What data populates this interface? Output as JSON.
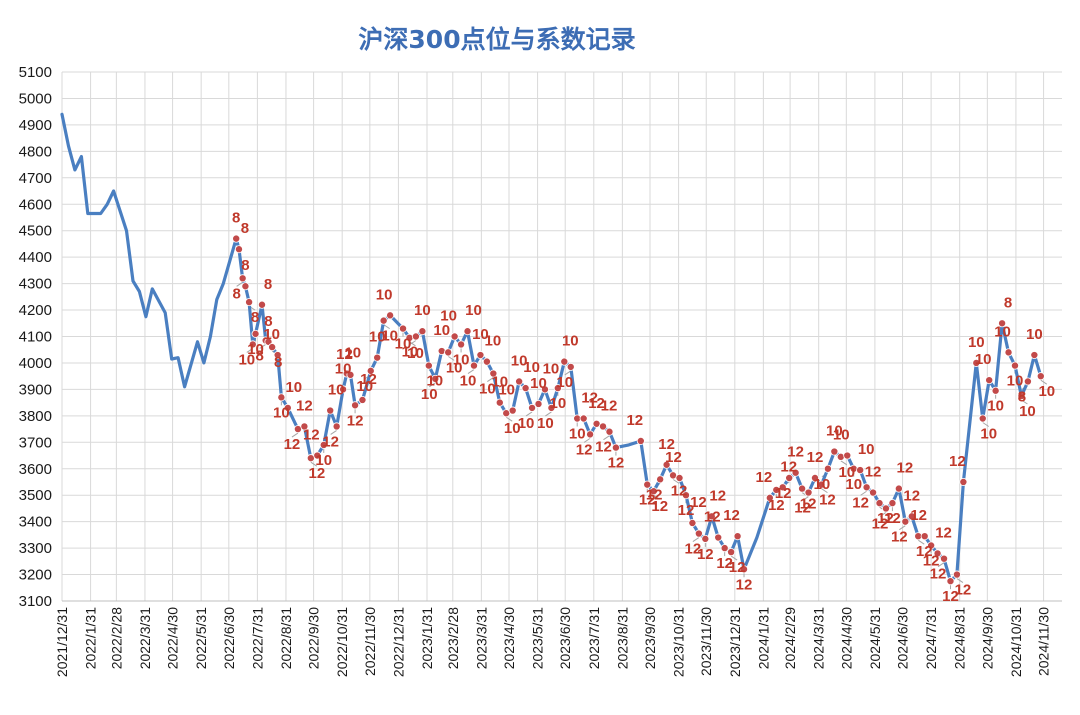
{
  "chart_data": {
    "type": "line",
    "title": "沪深300点位与系数记录",
    "xlabel": "",
    "ylabel": "",
    "ylim": [
      3100,
      5100
    ],
    "ytick_step": 100,
    "grid": true,
    "x_range": [
      "2021-12-31",
      "2024-12-20"
    ],
    "colors": {
      "line": "#4a7fc1",
      "marker": "#c24a4a",
      "label": "#c0392b",
      "title": "#3d6db4"
    },
    "x_tick_labels": [
      "2021/12/31",
      "2022/1/31",
      "2022/2/28",
      "2022/3/31",
      "2022/4/30",
      "2022/5/31",
      "2022/6/30",
      "2022/7/31",
      "2022/8/31",
      "2022/9/30",
      "2022/10/31",
      "2022/11/30",
      "2022/12/31",
      "2023/1/31",
      "2023/2/28",
      "2023/3/31",
      "2023/4/30",
      "2023/5/31",
      "2023/6/30",
      "2023/7/31",
      "2023/8/31",
      "2023/9/30",
      "2023/10/31",
      "2023/11/30",
      "2023/12/31",
      "2024/1/31",
      "2024/2/29",
      "2024/3/31",
      "2024/4/30",
      "2024/5/31",
      "2024/6/30",
      "2024/7/31",
      "2024/8/31",
      "2024/9/30",
      "2024/10/31",
      "2024/11/30"
    ],
    "series": [
      {
        "points": [
          {
            "date": "2021-12-31",
            "y": 4940
          },
          {
            "date": "2022-01-07",
            "y": 4820
          },
          {
            "date": "2022-01-14",
            "y": 4730
          },
          {
            "date": "2022-01-21",
            "y": 4780
          },
          {
            "date": "2022-01-28",
            "y": 4565
          },
          {
            "date": "2022-02-11",
            "y": 4565
          },
          {
            "date": "2022-02-18",
            "y": 4600
          },
          {
            "date": "2022-02-25",
            "y": 4650
          },
          {
            "date": "2022-03-11",
            "y": 4500
          },
          {
            "date": "2022-03-18",
            "y": 4310
          },
          {
            "date": "2022-03-25",
            "y": 4270
          },
          {
            "date": "2022-04-01",
            "y": 4175
          },
          {
            "date": "2022-04-08",
            "y": 4280
          },
          {
            "date": "2022-04-22",
            "y": 4190
          },
          {
            "date": "2022-04-29",
            "y": 4015
          },
          {
            "date": "2022-05-06",
            "y": 4020
          },
          {
            "date": "2022-05-13",
            "y": 3910
          },
          {
            "date": "2022-05-27",
            "y": 4080
          },
          {
            "date": "2022-06-03",
            "y": 4000
          },
          {
            "date": "2022-06-10",
            "y": 4100
          },
          {
            "date": "2022-06-17",
            "y": 4240
          },
          {
            "date": "2022-06-24",
            "y": 4300
          },
          {
            "date": "2022-07-08",
            "y": 4470,
            "label": "8"
          },
          {
            "date": "2022-07-11",
            "y": 4430,
            "label": "8"
          },
          {
            "date": "2022-07-15",
            "y": 4320,
            "label": "8"
          },
          {
            "date": "2022-07-18",
            "y": 4290,
            "label": "8"
          },
          {
            "date": "2022-07-22",
            "y": 4230,
            "label": "8"
          },
          {
            "date": "2022-07-26",
            "y": 4070,
            "label": "10"
          },
          {
            "date": "2022-07-29",
            "y": 4110,
            "label": "10"
          },
          {
            "date": "2022-08-05",
            "y": 4220,
            "label": "8"
          },
          {
            "date": "2022-08-09",
            "y": 4085,
            "label": "8"
          },
          {
            "date": "2022-08-12",
            "y": 4080,
            "label": "8"
          },
          {
            "date": "2022-08-16",
            "y": 4060,
            "label": "8"
          },
          {
            "date": "2022-08-22",
            "y": 4030,
            "label": "10"
          },
          {
            "date": "2022-08-26",
            "y": 3870,
            "label": "10"
          },
          {
            "date": "2022-09-02",
            "y": 3830,
            "label": "10"
          },
          {
            "date": "2022-09-13",
            "y": 3750,
            "label": "12"
          },
          {
            "date": "2022-09-20",
            "y": 3760,
            "label": "12"
          },
          {
            "date": "2022-09-27",
            "y": 3640,
            "label": "12"
          },
          {
            "date": "2022-10-04",
            "y": 3650,
            "label": "12"
          },
          {
            "date": "2022-10-11",
            "y": 3690,
            "label": "10"
          },
          {
            "date": "2022-10-18",
            "y": 3820,
            "label": "10"
          },
          {
            "date": "2022-10-25",
            "y": 3760,
            "label": "12"
          },
          {
            "date": "2022-11-01",
            "y": 3900,
            "label": "10"
          },
          {
            "date": "2022-11-05",
            "y": 3960,
            "label": "10"
          },
          {
            "date": "2022-11-09",
            "y": 3955,
            "label": "12"
          },
          {
            "date": "2022-11-14",
            "y": 3840,
            "label": "12"
          },
          {
            "date": "2022-11-22",
            "y": 3860,
            "label": "12"
          },
          {
            "date": "2022-12-01",
            "y": 3970,
            "label": "10"
          },
          {
            "date": "2022-12-08",
            "y": 4020,
            "label": "10"
          },
          {
            "date": "2022-12-15",
            "y": 4160,
            "label": "10"
          },
          {
            "date": "2022-12-22",
            "y": 4180,
            "label": "10"
          },
          {
            "date": "2023-01-05",
            "y": 4130,
            "label": "10"
          },
          {
            "date": "2023-01-12",
            "y": 4095,
            "label": "10"
          },
          {
            "date": "2023-01-19",
            "y": 4100,
            "label": "10"
          },
          {
            "date": "2023-01-26",
            "y": 4120,
            "label": "10"
          },
          {
            "date": "2023-02-02",
            "y": 3990,
            "label": "10"
          },
          {
            "date": "2023-02-09",
            "y": 3940,
            "label": "10"
          },
          {
            "date": "2023-02-16",
            "y": 4045,
            "label": "10"
          },
          {
            "date": "2023-02-23",
            "y": 4040,
            "label": "10"
          },
          {
            "date": "2023-03-02",
            "y": 4100,
            "label": "10"
          },
          {
            "date": "2023-03-09",
            "y": 4070,
            "label": "10"
          },
          {
            "date": "2023-03-16",
            "y": 4120,
            "label": "10"
          },
          {
            "date": "2023-03-23",
            "y": 3990,
            "label": "10"
          },
          {
            "date": "2023-03-30",
            "y": 4030,
            "label": "10"
          },
          {
            "date": "2023-04-06",
            "y": 4005,
            "label": "10"
          },
          {
            "date": "2023-04-13",
            "y": 3960,
            "label": "10"
          },
          {
            "date": "2023-04-20",
            "y": 3850,
            "label": "10"
          },
          {
            "date": "2023-04-27",
            "y": 3810,
            "label": "10"
          },
          {
            "date": "2023-05-04",
            "y": 3820,
            "label": "10"
          },
          {
            "date": "2023-05-11",
            "y": 3930,
            "label": "10"
          },
          {
            "date": "2023-05-18",
            "y": 3905,
            "label": "10"
          },
          {
            "date": "2023-05-25",
            "y": 3830,
            "label": "10"
          },
          {
            "date": "2023-06-01",
            "y": 3845,
            "label": "10"
          },
          {
            "date": "2023-06-08",
            "y": 3900,
            "label": "10"
          },
          {
            "date": "2023-06-15",
            "y": 3830,
            "label": "10"
          },
          {
            "date": "2023-06-22",
            "y": 3905,
            "label": "10"
          },
          {
            "date": "2023-06-29",
            "y": 4005,
            "label": "10"
          },
          {
            "date": "2023-07-06",
            "y": 3985,
            "label": "10"
          },
          {
            "date": "2023-07-13",
            "y": 3790,
            "label": "10"
          },
          {
            "date": "2023-07-20",
            "y": 3790,
            "label": "12"
          },
          {
            "date": "2023-07-27",
            "y": 3730,
            "label": "12"
          },
          {
            "date": "2023-08-03",
            "y": 3770,
            "label": "12"
          },
          {
            "date": "2023-08-10",
            "y": 3760,
            "label": "12"
          },
          {
            "date": "2023-08-17",
            "y": 3740,
            "label": "12"
          },
          {
            "date": "2023-08-24",
            "y": 3680,
            "label": "12"
          },
          {
            "date": "2023-09-07",
            "y": 3690
          },
          {
            "date": "2023-09-20",
            "y": 3705,
            "label": "12"
          },
          {
            "date": "2023-09-27",
            "y": 3540,
            "label": "12"
          },
          {
            "date": "2023-10-04",
            "y": 3515,
            "label": "12"
          },
          {
            "date": "2023-10-11",
            "y": 3560,
            "label": "12"
          },
          {
            "date": "2023-10-18",
            "y": 3615,
            "label": "12"
          },
          {
            "date": "2023-10-25",
            "y": 3575,
            "label": "12"
          },
          {
            "date": "2023-11-01",
            "y": 3565,
            "label": "12"
          },
          {
            "date": "2023-11-08",
            "y": 3500,
            "label": "12"
          },
          {
            "date": "2023-11-15",
            "y": 3395,
            "label": "12"
          },
          {
            "date": "2023-11-22",
            "y": 3355,
            "label": "12"
          },
          {
            "date": "2023-11-29",
            "y": 3335,
            "label": "12"
          },
          {
            "date": "2023-12-06",
            "y": 3420,
            "label": "12"
          },
          {
            "date": "2023-12-13",
            "y": 3340,
            "label": "12"
          },
          {
            "date": "2023-12-20",
            "y": 3300,
            "label": "12"
          },
          {
            "date": "2023-12-27",
            "y": 3285,
            "label": "12"
          },
          {
            "date": "2024-01-03",
            "y": 3345,
            "label": "12"
          },
          {
            "date": "2024-01-10",
            "y": 3220,
            "label": "12"
          },
          {
            "date": "2024-01-24",
            "y": 3340
          },
          {
            "date": "2024-02-07",
            "y": 3490,
            "label": "12"
          },
          {
            "date": "2024-02-14",
            "y": 3520,
            "label": "12"
          },
          {
            "date": "2024-02-21",
            "y": 3530,
            "label": "12"
          },
          {
            "date": "2024-02-28",
            "y": 3565,
            "label": "12"
          },
          {
            "date": "2024-03-06",
            "y": 3585,
            "label": "12"
          },
          {
            "date": "2024-03-13",
            "y": 3525,
            "label": "12"
          },
          {
            "date": "2024-03-20",
            "y": 3510,
            "label": "12"
          },
          {
            "date": "2024-03-27",
            "y": 3565,
            "label": "12"
          },
          {
            "date": "2024-04-03",
            "y": 3540,
            "label": "12"
          },
          {
            "date": "2024-04-10",
            "y": 3600,
            "label": "10"
          },
          {
            "date": "2024-04-17",
            "y": 3665,
            "label": "10"
          },
          {
            "date": "2024-04-24",
            "y": 3645,
            "label": "10"
          },
          {
            "date": "2024-05-01",
            "y": 3650,
            "label": "10"
          },
          {
            "date": "2024-05-08",
            "y": 3600,
            "label": "10"
          },
          {
            "date": "2024-05-15",
            "y": 3595,
            "label": "10"
          },
          {
            "date": "2024-05-22",
            "y": 3530,
            "label": "12"
          },
          {
            "date": "2024-05-29",
            "y": 3510,
            "label": "12"
          },
          {
            "date": "2024-06-05",
            "y": 3470,
            "label": "12"
          },
          {
            "date": "2024-06-12",
            "y": 3450,
            "label": "12"
          },
          {
            "date": "2024-06-19",
            "y": 3470,
            "label": "12"
          },
          {
            "date": "2024-06-26",
            "y": 3525,
            "label": "12"
          },
          {
            "date": "2024-07-03",
            "y": 3400,
            "label": "12"
          },
          {
            "date": "2024-07-10",
            "y": 3420,
            "label": "12"
          },
          {
            "date": "2024-07-17",
            "y": 3345,
            "label": "12"
          },
          {
            "date": "2024-07-24",
            "y": 3345,
            "label": "12"
          },
          {
            "date": "2024-07-31",
            "y": 3310,
            "label": "12"
          },
          {
            "date": "2024-08-07",
            "y": 3280,
            "label": "12"
          },
          {
            "date": "2024-08-14",
            "y": 3260,
            "label": "12"
          },
          {
            "date": "2024-08-21",
            "y": 3175,
            "label": "12"
          },
          {
            "date": "2024-08-28",
            "y": 3200,
            "label": "12"
          },
          {
            "date": "2024-09-04",
            "y": 3550,
            "label": "12"
          },
          {
            "date": "2024-09-18",
            "y": 4000,
            "label": "10"
          },
          {
            "date": "2024-09-25",
            "y": 3790,
            "label": "10"
          },
          {
            "date": "2024-10-02",
            "y": 3935,
            "label": "10"
          },
          {
            "date": "2024-10-09",
            "y": 3895,
            "label": "10"
          },
          {
            "date": "2024-10-16",
            "y": 4150,
            "label": "8"
          },
          {
            "date": "2024-10-23",
            "y": 4040,
            "label": "10"
          },
          {
            "date": "2024-10-30",
            "y": 3990,
            "label": "10"
          },
          {
            "date": "2024-11-06",
            "y": 3875,
            "label": "10"
          },
          {
            "date": "2024-11-13",
            "y": 3930,
            "label": "8"
          },
          {
            "date": "2024-11-20",
            "y": 4030,
            "label": "10"
          },
          {
            "date": "2024-11-27",
            "y": 3950,
            "label": "10"
          }
        ]
      }
    ]
  }
}
